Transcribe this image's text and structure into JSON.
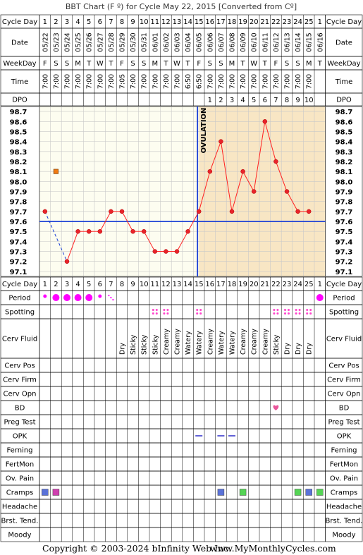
{
  "title": "BBT Chart (F º) for Cycle May 22, 2015  [Converted from Cº]",
  "footer": {
    "copyright": "Copyright © 2003-2024 bInfinity Web Inc.",
    "site": "www.MyMonthlyCycles.com"
  },
  "row_labels": {
    "cycle_day": "Cycle Day",
    "date": "Date",
    "weekday": "WeekDay",
    "time": "Time",
    "dpo": "DPO",
    "period": "Period",
    "spotting": "Spotting",
    "cerv_fluid": "Cerv Fluid",
    "cerv_pos": "Cerv Pos",
    "cerv_firm": "Cerv Firm",
    "cerv_opn": "Cerv Opn",
    "bd": "BD",
    "preg_test": "Preg Test",
    "opk": "OPK",
    "ferning": "Ferning",
    "fertmon": "FertMon",
    "ov_pain": "Ov. Pain",
    "cramps": "Cramps",
    "headache": "Headache",
    "brst_tend": "Brst. Tend.",
    "moody": "Moody"
  },
  "chart_data": {
    "type": "line",
    "ylabel": "",
    "ylim": [
      97.1,
      98.7
    ],
    "y_ticks": [
      "98.7",
      "98.6",
      "98.5",
      "98.4",
      "98.3",
      "98.2",
      "98.1",
      "98.0",
      "97.9",
      "97.8",
      "97.7",
      "97.6",
      "97.5",
      "97.4",
      "97.3",
      "97.2",
      "97.1"
    ],
    "cycle_days": [
      "1",
      "2",
      "3",
      "4",
      "5",
      "6",
      "7",
      "8",
      "9",
      "10",
      "11",
      "12",
      "13",
      "14",
      "15",
      "16",
      "17",
      "18",
      "19",
      "20",
      "21",
      "22",
      "23",
      "24",
      "25",
      "1"
    ],
    "dates": [
      "05/22",
      "05/23",
      "05/24",
      "05/25",
      "05/26",
      "05/27",
      "05/28",
      "05/29",
      "05/30",
      "05/31",
      "06/01",
      "06/02",
      "06/03",
      "06/04",
      "06/05",
      "06/06",
      "06/07",
      "06/08",
      "06/09",
      "06/10",
      "06/11",
      "06/12",
      "06/13",
      "06/14",
      "06/15",
      "06/16"
    ],
    "weekdays": [
      "F",
      "S",
      "S",
      "M",
      "T",
      "W",
      "T",
      "F",
      "S",
      "S",
      "M",
      "T",
      "W",
      "T",
      "F",
      "S",
      "S",
      "M",
      "T",
      "W",
      "T",
      "F",
      "S",
      "S",
      "M",
      "T"
    ],
    "times": [
      "7:00",
      "7:00",
      "7:00",
      "7:00",
      "7:00",
      "7:00",
      "7:00",
      "7:05",
      "7:00",
      "7:00",
      "7:00",
      "7:00",
      "7:00",
      "6:50",
      "6:50",
      "7:00",
      "7:00",
      "7:00",
      "7:00",
      "7:00",
      "7:00",
      "7:00",
      "7:00",
      "7:00",
      "7:00",
      ""
    ],
    "dpo": [
      "",
      "",
      "",
      "",
      "",
      "",
      "",
      "",
      "",
      "",
      "",
      "",
      "",
      "",
      "",
      "1",
      "2",
      "3",
      "4",
      "5",
      "6",
      "7",
      "8",
      "9",
      "10",
      ""
    ],
    "series": [
      {
        "values": [
          97.7,
          98.1,
          97.2,
          97.5,
          97.5,
          97.5,
          97.7,
          97.7,
          97.5,
          97.5,
          97.3,
          97.3,
          97.3,
          97.5,
          97.7,
          98.1,
          98.4,
          97.7,
          98.1,
          97.9,
          98.6,
          98.2,
          97.9,
          97.7,
          97.7,
          null
        ]
      }
    ],
    "excluded_days": [
      2
    ],
    "coverline": 97.6,
    "ovulation_day": 15,
    "ovulation_label": "OVULATION",
    "colors": {
      "line": "#ff2020",
      "point": "#e8232a",
      "excluded_marker": "#f07a12",
      "coverline": "#1a3fd6",
      "luteal_bg": "#f8e6c4",
      "chart_bg": "#fdfdf0",
      "period_dot": "#ff00ff",
      "spotting_dot": "#ff44cc",
      "bd_heart": "#e8559a",
      "opk_dash": "#3a3acc",
      "cramps_blue": "#5a72d8",
      "cramps_green": "#55d455",
      "cramps_magenta": "#d040b0"
    },
    "period": [
      "small",
      "large",
      "large",
      "large",
      "large",
      "small",
      "spot-dots",
      "",
      "",
      "",
      "",
      "",
      "",
      "",
      "",
      "",
      "",
      "",
      "",
      "",
      "",
      "",
      "",
      "",
      "",
      "large"
    ],
    "spotting_days": [
      11,
      12,
      15,
      22,
      23,
      24,
      25
    ],
    "cerv_fluid": [
      "",
      "",
      "",
      "",
      "",
      "",
      "",
      "Dry",
      "Sticky",
      "Sticky",
      "Sticky",
      "Creamy",
      "Creamy",
      "Watery",
      "Watery",
      "Creamy",
      "Watery",
      "Watery",
      "Creamy",
      "Creamy",
      "Creamy",
      "Sticky",
      "Dry",
      "Dry",
      "Dry",
      ""
    ],
    "bd_days": [
      22
    ],
    "opk_days": [
      15,
      17,
      18
    ],
    "cramps": [
      {
        "day": 1,
        "color": "blue"
      },
      {
        "day": 2,
        "color": "magenta"
      },
      {
        "day": 17,
        "color": "blue"
      },
      {
        "day": 19,
        "color": "green"
      },
      {
        "day": 24,
        "color": "green"
      },
      {
        "day": 25,
        "color": "blue"
      },
      {
        "day": 26,
        "color": "green"
      }
    ]
  }
}
